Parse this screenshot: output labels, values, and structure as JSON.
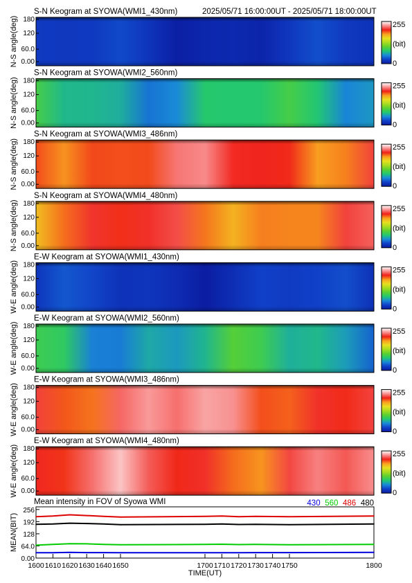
{
  "header": {
    "time_range": "2025/05/71 16:00:00UT - 2025/05/71 18:00:00UT"
  },
  "colorbar": {
    "max_label": "255",
    "unit_label": "(bit)",
    "min_label": "0"
  },
  "colormap": [
    "#0a1a9e",
    "#1040c8",
    "#1a8ad8",
    "#22c870",
    "#5cd030",
    "#a8dc20",
    "#e8e020",
    "#f8a020",
    "#f02018",
    "#f89090",
    "#ffffff"
  ],
  "keograms": [
    {
      "title": "S-N Keogram at SYOWA(WMI1_430nm)",
      "ylabel": "N-S angle(deg)",
      "yticks": [
        "180",
        "120",
        "60.0",
        "0.00"
      ],
      "level": 0.06,
      "variation": 0.04
    },
    {
      "title": "S-N Keogram at SYOWA(WMI2_560nm)",
      "ylabel": "N-S angle(deg)",
      "yticks": [
        "180",
        "120",
        "60.0",
        "0.00"
      ],
      "level": 0.27,
      "variation": 0.07
    },
    {
      "title": "S-N Keogram at SYOWA(WMI3_486nm)",
      "ylabel": "N-S angle(deg)",
      "yticks": [
        "180",
        "120",
        "60.0",
        "0.00"
      ],
      "level": 0.8,
      "variation": 0.07
    },
    {
      "title": "S-N Keogram at SYOWA(WMI4_480nm)",
      "ylabel": "N-S angle(deg)",
      "yticks": [
        "180",
        "120",
        "60.0",
        "0.00"
      ],
      "level": 0.76,
      "variation": 0.07
    },
    {
      "title": "E-W Keogram at SYOWA(WMI1_430nm)",
      "ylabel": "W-E angle(deg)",
      "yticks": [
        "180",
        "120",
        "60.0",
        "0.00"
      ],
      "level": 0.07,
      "variation": 0.04
    },
    {
      "title": "E-W Keogram at SYOWA(WMI2_560nm)",
      "ylabel": "W-E angle(deg)",
      "yticks": [
        "180",
        "120",
        "60.0",
        "0.00"
      ],
      "level": 0.27,
      "variation": 0.08
    },
    {
      "title": "E-W Keogram at SYOWA(WMI3_486nm)",
      "ylabel": "W-E angle(deg)",
      "yticks": [
        "180",
        "120",
        "60.0",
        "0.00"
      ],
      "level": 0.84,
      "variation": 0.08
    },
    {
      "title": "E-W Keogram at SYOWA(WMI4_480nm)",
      "ylabel": "W-E angle(deg)",
      "yticks": [
        "180",
        "120",
        "60.0",
        "0.00"
      ],
      "level": 0.82,
      "variation": 0.08
    }
  ],
  "chart_data": {
    "type": "line",
    "title": "Mean intensity in FOV of Syowa WMI",
    "xlabel": "TIME(UT)",
    "ylabel": "MEAN(BIT)",
    "ylim": [
      0,
      270
    ],
    "xlim": [
      1600,
      1800
    ],
    "x_tick_labels": [
      "1600",
      "1610",
      "1620",
      "1630",
      "1640",
      "1650",
      "1700",
      "1710",
      "1720",
      "1730",
      "1740",
      "1750",
      "1800"
    ],
    "y_tick_labels": [
      "0.00",
      "64.0",
      "128",
      "192",
      "256"
    ],
    "y_tick_values": [
      0,
      64,
      128,
      192,
      256
    ],
    "x": [
      1600,
      1610,
      1620,
      1630,
      1640,
      1650,
      1700,
      1710,
      1720,
      1730,
      1740,
      1750,
      1800
    ],
    "series": [
      {
        "name": "430",
        "color": "#0000dd",
        "values": [
          28,
          28,
          30,
          29,
          29,
          28,
          28,
          28,
          28,
          29,
          29,
          29,
          30
        ]
      },
      {
        "name": "560",
        "color": "#00cc00",
        "values": [
          68,
          72,
          76,
          75,
          72,
          70,
          72,
          73,
          71,
          72,
          71,
          70,
          72
        ]
      },
      {
        "name": "486",
        "color": "#dd0000",
        "values": [
          218,
          222,
          228,
          224,
          220,
          216,
          220,
          222,
          218,
          220,
          219,
          218,
          222
        ]
      },
      {
        "name": "480",
        "color": "#000000",
        "values": [
          178,
          180,
          184,
          182,
          180,
          176,
          178,
          180,
          177,
          178,
          177,
          176,
          180
        ]
      }
    ],
    "grid": false,
    "legend": "top-right"
  }
}
